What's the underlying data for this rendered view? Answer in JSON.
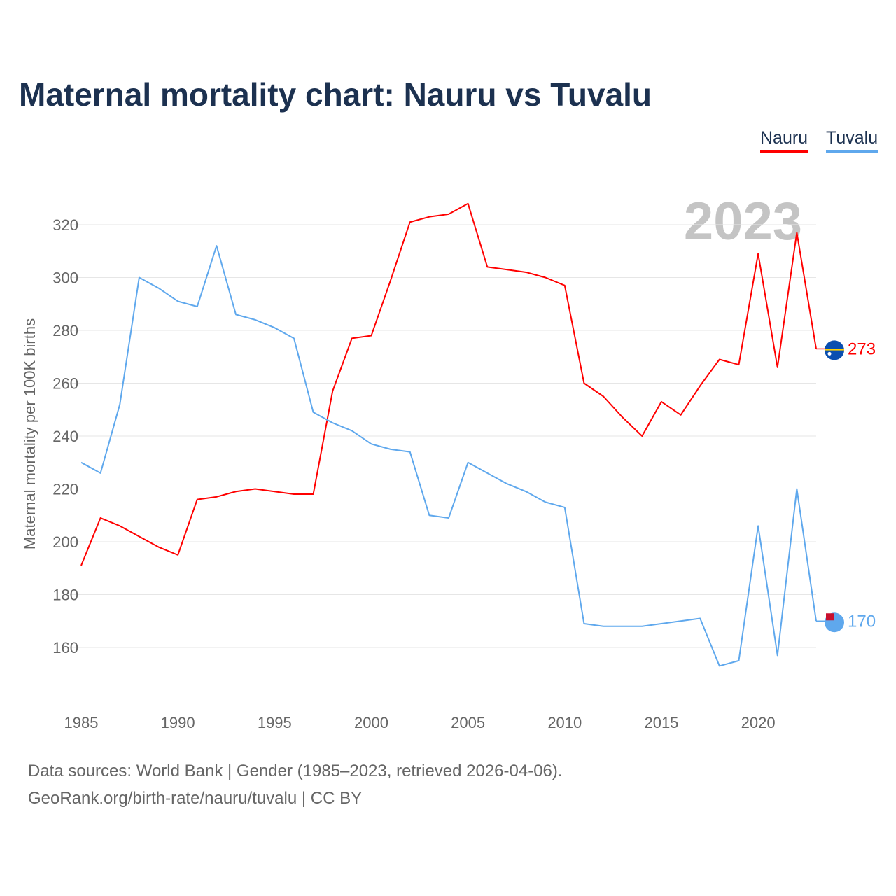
{
  "title": "Maternal mortality chart: Nauru vs Tuvalu",
  "footer": {
    "line1": "Data sources: World Bank | Gender (1985–2023, retrieved 2026-04-06).",
    "line2": "GeoRank.org/birth-rate/nauru/tuvalu | CC BY"
  },
  "chart_data": {
    "type": "line",
    "title": "Maternal mortality chart: Nauru vs Tuvalu",
    "ylabel": "Maternal mortality per 100K births",
    "xlabel": "",
    "year_label": "2023",
    "ylim": [
      140,
      340
    ],
    "xlim": [
      1985,
      2023
    ],
    "yticks": [
      160,
      180,
      200,
      220,
      240,
      260,
      280,
      300,
      320
    ],
    "xticks": [
      1985,
      1990,
      1995,
      2000,
      2005,
      2010,
      2015,
      2020
    ],
    "grid": true,
    "legend_position": "top-right",
    "x": [
      1985,
      1986,
      1987,
      1988,
      1989,
      1990,
      1991,
      1992,
      1993,
      1994,
      1995,
      1996,
      1997,
      1998,
      1999,
      2000,
      2001,
      2002,
      2003,
      2004,
      2005,
      2006,
      2007,
      2008,
      2009,
      2010,
      2011,
      2012,
      2013,
      2014,
      2015,
      2016,
      2017,
      2018,
      2019,
      2020,
      2021,
      2022,
      2023
    ],
    "series": [
      {
        "name": "Nauru",
        "color": "#ff0000",
        "end_label": "273",
        "values": [
          191,
          209,
          206,
          202,
          198,
          195,
          216,
          217,
          219,
          220,
          219,
          218,
          218,
          257,
          277,
          278,
          299,
          321,
          323,
          324,
          328,
          304,
          303,
          302,
          300,
          297,
          260,
          255,
          247,
          240,
          253,
          248,
          259,
          269,
          267,
          309,
          266,
          317,
          273
        ]
      },
      {
        "name": "Tuvalu",
        "color": "#5fa8ed",
        "end_label": "170",
        "values": [
          230,
          226,
          252,
          300,
          296,
          291,
          289,
          312,
          286,
          284,
          281,
          277,
          249,
          245,
          242,
          237,
          235,
          234,
          210,
          209,
          230,
          226,
          222,
          219,
          215,
          213,
          169,
          168,
          168,
          168,
          169,
          170,
          171,
          153,
          155,
          206,
          157,
          220,
          170
        ]
      }
    ]
  }
}
